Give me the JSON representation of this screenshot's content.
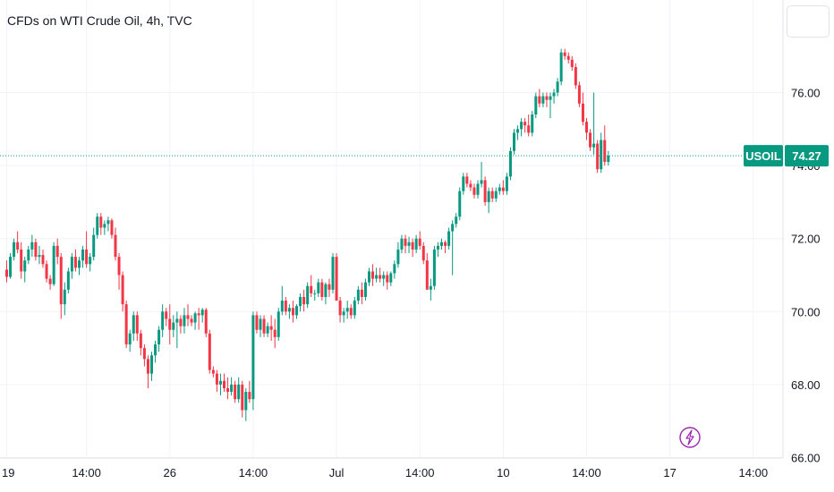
{
  "header": {
    "title": "CFDs on WTI Crude Oil, 4h, TVC"
  },
  "price_badge": {
    "symbol": "USOIL",
    "value": "74.27",
    "color": "#089981"
  },
  "colors": {
    "up": "#089981",
    "down": "#f23645",
    "grid": "#f0f3fa",
    "last_line": "#089981",
    "bolt": "#9c27b0"
  },
  "icons": [
    "lightning-icon"
  ],
  "chart_data": {
    "type": "candlestick",
    "title": "CFDs on WTI Crude Oil, 4h, TVC",
    "x_tick_labels": [
      "19",
      "14:00",
      "26",
      "14:00",
      "Jul",
      "14:00",
      "10",
      "14:00",
      "17",
      "14:00"
    ],
    "x_tick_candle_index": [
      0,
      22,
      45,
      68,
      91,
      114,
      137,
      160,
      183,
      206
    ],
    "y_ticks": [
      66.0,
      68.0,
      70.0,
      72.0,
      74.0,
      76.0
    ],
    "y_tick_labels": [
      "66.00",
      "68.00",
      "70.00",
      "72.00",
      "74.00",
      "76.00"
    ],
    "ylim": [
      65.8,
      78.4
    ],
    "last_price": 74.27,
    "grid": true,
    "ohlc": [
      [
        71.15,
        71.4,
        70.8,
        70.95
      ],
      [
        70.95,
        71.6,
        70.9,
        71.5
      ],
      [
        71.5,
        72.0,
        71.4,
        71.9
      ],
      [
        71.9,
        72.2,
        71.6,
        71.7
      ],
      [
        71.7,
        71.9,
        70.9,
        71.1
      ],
      [
        71.1,
        71.5,
        70.8,
        71.4
      ],
      [
        71.4,
        71.8,
        71.3,
        71.7
      ],
      [
        71.7,
        72.1,
        71.5,
        71.9
      ],
      [
        71.9,
        72.0,
        71.4,
        71.5
      ],
      [
        71.5,
        71.8,
        71.3,
        71.55
      ],
      [
        71.55,
        71.7,
        71.2,
        71.3
      ],
      [
        71.3,
        71.4,
        70.8,
        70.9
      ],
      [
        70.9,
        71.0,
        70.6,
        70.75
      ],
      [
        70.75,
        71.9,
        70.7,
        71.8
      ],
      [
        71.8,
        72.0,
        71.3,
        71.5
      ],
      [
        71.5,
        71.6,
        69.8,
        70.2
      ],
      [
        70.2,
        70.8,
        69.9,
        70.6
      ],
      [
        70.6,
        71.2,
        70.5,
        71.1
      ],
      [
        71.1,
        71.6,
        70.9,
        71.5
      ],
      [
        71.5,
        71.7,
        71.1,
        71.2
      ],
      [
        71.2,
        71.5,
        71.0,
        71.4
      ],
      [
        71.4,
        71.8,
        71.2,
        71.7
      ],
      [
        71.7,
        72.2,
        71.2,
        71.3
      ],
      [
        71.3,
        71.6,
        71.1,
        71.5
      ],
      [
        71.5,
        72.3,
        71.4,
        72.1
      ],
      [
        72.1,
        72.7,
        72.0,
        72.6
      ],
      [
        72.6,
        72.7,
        72.1,
        72.3
      ],
      [
        72.3,
        72.5,
        72.1,
        72.4
      ],
      [
        72.4,
        72.6,
        72.2,
        72.5
      ],
      [
        72.5,
        72.55,
        72.0,
        72.1
      ],
      [
        72.1,
        72.3,
        71.4,
        71.5
      ],
      [
        71.5,
        71.6,
        70.6,
        71.0
      ],
      [
        71.0,
        71.1,
        70.0,
        70.2
      ],
      [
        70.2,
        70.3,
        69.0,
        69.1
      ],
      [
        69.1,
        69.5,
        68.9,
        69.4
      ],
      [
        69.4,
        70.0,
        69.2,
        69.9
      ],
      [
        69.9,
        70.0,
        69.2,
        69.4
      ],
      [
        69.4,
        69.5,
        68.8,
        69.0
      ],
      [
        69.0,
        69.1,
        68.5,
        68.7
      ],
      [
        68.7,
        68.8,
        67.9,
        68.3
      ],
      [
        68.3,
        68.9,
        68.1,
        68.8
      ],
      [
        68.8,
        69.2,
        68.6,
        69.1
      ],
      [
        69.1,
        69.6,
        68.9,
        69.5
      ],
      [
        69.5,
        70.2,
        69.3,
        70.0
      ],
      [
        70.0,
        70.1,
        69.6,
        69.8
      ],
      [
        69.8,
        70.2,
        69.1,
        69.5
      ],
      [
        69.5,
        69.9,
        69.3,
        69.7
      ],
      [
        69.7,
        70.0,
        69.0,
        69.8
      ],
      [
        69.8,
        69.9,
        69.4,
        69.6
      ],
      [
        69.6,
        70.1,
        69.4,
        69.9
      ],
      [
        69.9,
        70.2,
        69.6,
        69.8
      ],
      [
        69.8,
        69.9,
        69.6,
        69.7
      ],
      [
        69.7,
        70.0,
        69.5,
        69.95
      ],
      [
        69.95,
        70.1,
        69.5,
        69.9
      ],
      [
        69.9,
        70.1,
        69.7,
        70.05
      ],
      [
        70.05,
        70.1,
        69.3,
        69.4
      ],
      [
        69.4,
        69.5,
        68.3,
        68.4
      ],
      [
        68.4,
        68.5,
        68.2,
        68.3
      ],
      [
        68.3,
        68.4,
        67.8,
        68.0
      ],
      [
        68.0,
        68.3,
        67.7,
        68.1
      ],
      [
        68.1,
        68.3,
        67.8,
        67.9
      ],
      [
        67.9,
        68.2,
        67.6,
        67.8
      ],
      [
        67.8,
        68.2,
        67.7,
        68.0
      ],
      [
        68.0,
        68.1,
        67.5,
        67.6
      ],
      [
        67.6,
        68.2,
        67.5,
        68.0
      ],
      [
        68.0,
        68.1,
        67.1,
        67.3
      ],
      [
        67.3,
        67.9,
        67.0,
        67.8
      ],
      [
        67.8,
        68.1,
        67.5,
        67.6
      ],
      [
        67.6,
        70.0,
        67.3,
        69.9
      ],
      [
        69.9,
        70.0,
        69.4,
        69.5
      ],
      [
        69.5,
        69.9,
        69.3,
        69.8
      ],
      [
        69.8,
        69.9,
        69.3,
        69.4
      ],
      [
        69.4,
        69.7,
        69.3,
        69.6
      ],
      [
        69.6,
        69.9,
        69.2,
        69.5
      ],
      [
        69.5,
        69.8,
        69.0,
        69.3
      ],
      [
        69.3,
        70.1,
        69.2,
        70.0
      ],
      [
        70.0,
        70.7,
        69.9,
        70.3
      ],
      [
        70.3,
        70.4,
        69.9,
        70.0
      ],
      [
        70.0,
        70.2,
        69.8,
        70.1
      ],
      [
        70.1,
        70.3,
        69.7,
        69.9
      ],
      [
        69.9,
        70.2,
        69.8,
        70.15
      ],
      [
        70.15,
        70.5,
        70.0,
        70.4
      ],
      [
        70.4,
        70.6,
        70.0,
        70.2
      ],
      [
        70.2,
        70.8,
        70.1,
        70.7
      ],
      [
        70.7,
        71.0,
        70.4,
        70.5
      ],
      [
        70.5,
        70.6,
        70.3,
        70.5
      ],
      [
        70.5,
        70.9,
        70.4,
        70.8
      ],
      [
        70.8,
        70.9,
        70.3,
        70.4
      ],
      [
        70.4,
        70.8,
        70.2,
        70.75
      ],
      [
        70.75,
        70.9,
        70.4,
        70.6
      ],
      [
        70.6,
        71.6,
        70.5,
        71.5
      ],
      [
        71.5,
        71.6,
        70.3,
        70.3
      ],
      [
        70.3,
        70.4,
        69.7,
        69.9
      ],
      [
        69.9,
        70.1,
        69.7,
        70.0
      ],
      [
        70.0,
        70.3,
        69.8,
        70.1
      ],
      [
        70.1,
        70.2,
        69.8,
        69.9
      ],
      [
        69.9,
        70.4,
        69.8,
        70.3
      ],
      [
        70.3,
        70.7,
        70.2,
        70.6
      ],
      [
        70.6,
        70.8,
        70.2,
        70.4
      ],
      [
        70.4,
        70.9,
        70.3,
        70.8
      ],
      [
        70.8,
        71.2,
        70.7,
        71.1
      ],
      [
        71.1,
        71.3,
        70.7,
        70.9
      ],
      [
        70.9,
        71.2,
        70.8,
        71.0
      ],
      [
        71.0,
        71.2,
        70.8,
        70.9
      ],
      [
        70.9,
        71.1,
        70.7,
        71.0
      ],
      [
        71.0,
        71.1,
        70.6,
        70.8
      ],
      [
        70.8,
        71.1,
        70.7,
        71.05
      ],
      [
        71.05,
        71.4,
        70.9,
        71.3
      ],
      [
        71.3,
        71.9,
        71.2,
        71.7
      ],
      [
        71.7,
        72.1,
        71.6,
        72.0
      ],
      [
        72.0,
        72.1,
        71.6,
        71.8
      ],
      [
        71.8,
        72.05,
        71.6,
        71.9
      ],
      [
        71.9,
        72.0,
        71.5,
        71.7
      ],
      [
        71.7,
        72.1,
        71.6,
        72.0
      ],
      [
        72.0,
        72.2,
        71.7,
        71.8
      ],
      [
        71.8,
        71.9,
        71.3,
        71.4
      ],
      [
        71.4,
        71.6,
        70.6,
        70.6
      ],
      [
        70.6,
        70.9,
        70.3,
        70.7
      ],
      [
        70.7,
        71.8,
        70.6,
        71.7
      ],
      [
        71.7,
        71.9,
        71.5,
        71.8
      ],
      [
        71.8,
        72.0,
        71.7,
        71.9
      ],
      [
        71.9,
        71.95,
        71.6,
        71.8
      ],
      [
        71.8,
        72.3,
        71.7,
        72.2
      ],
      [
        72.2,
        72.5,
        71.0,
        72.4
      ],
      [
        72.4,
        72.7,
        72.3,
        72.6
      ],
      [
        72.6,
        73.4,
        72.5,
        73.3
      ],
      [
        73.3,
        73.8,
        73.2,
        73.7
      ],
      [
        73.7,
        73.8,
        73.4,
        73.5
      ],
      [
        73.5,
        73.6,
        73.3,
        73.4
      ],
      [
        73.4,
        73.5,
        73.1,
        73.2
      ],
      [
        73.2,
        73.6,
        73.1,
        73.5
      ],
      [
        73.5,
        74.1,
        73.4,
        73.6
      ],
      [
        73.6,
        73.7,
        72.9,
        73.0
      ],
      [
        73.0,
        73.4,
        72.7,
        73.3
      ],
      [
        73.3,
        73.4,
        73.0,
        73.1
      ],
      [
        73.1,
        73.4,
        73.0,
        73.3
      ],
      [
        73.3,
        73.5,
        73.2,
        73.4
      ],
      [
        73.4,
        73.6,
        73.2,
        73.3
      ],
      [
        73.3,
        73.8,
        73.2,
        73.7
      ],
      [
        73.7,
        74.5,
        73.6,
        74.4
      ],
      [
        74.4,
        75.0,
        74.3,
        74.9
      ],
      [
        74.9,
        75.1,
        74.7,
        75.0
      ],
      [
        75.0,
        75.3,
        74.8,
        75.2
      ],
      [
        75.2,
        75.3,
        74.9,
        75.1
      ],
      [
        75.1,
        75.4,
        74.8,
        74.9
      ],
      [
        74.9,
        75.5,
        74.8,
        75.4
      ],
      [
        75.4,
        76.0,
        75.3,
        75.9
      ],
      [
        75.9,
        76.1,
        75.6,
        75.7
      ],
      [
        75.7,
        76.0,
        75.6,
        75.9
      ],
      [
        75.9,
        76.0,
        75.6,
        75.8
      ],
      [
        75.8,
        76.0,
        75.3,
        75.9
      ],
      [
        75.9,
        76.1,
        75.7,
        76.0
      ],
      [
        76.0,
        76.4,
        75.9,
        76.3
      ],
      [
        76.3,
        77.2,
        76.2,
        77.1
      ],
      [
        77.1,
        77.2,
        76.9,
        77.0
      ],
      [
        77.0,
        77.1,
        76.8,
        76.9
      ],
      [
        76.9,
        77.0,
        76.6,
        76.7
      ],
      [
        76.7,
        76.8,
        76.1,
        76.2
      ],
      [
        76.2,
        76.3,
        75.6,
        75.7
      ],
      [
        75.7,
        76.0,
        75.1,
        75.2
      ],
      [
        75.2,
        75.3,
        74.7,
        74.9
      ],
      [
        74.9,
        75.0,
        74.4,
        74.5
      ],
      [
        74.5,
        76.0,
        74.3,
        74.6
      ],
      [
        74.6,
        74.7,
        73.8,
        73.9
      ],
      [
        73.9,
        74.9,
        73.8,
        74.7
      ],
      [
        74.7,
        75.1,
        74.0,
        74.1
      ],
      [
        74.1,
        74.4,
        74.0,
        74.27
      ]
    ]
  }
}
